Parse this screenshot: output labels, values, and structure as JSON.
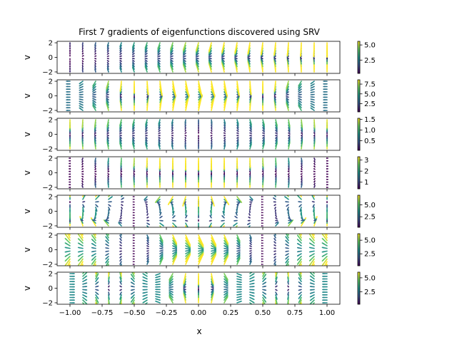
{
  "chart_data": {
    "type": "quiver",
    "title": "First 7 gradients of eigenfunctions discovered using SRV",
    "xlabel": "x",
    "ylabel": "v",
    "xlim": [
      -1.1,
      1.1
    ],
    "ylim": [
      -2.2,
      2.2
    ],
    "x_ticks": [
      -1.0,
      -0.75,
      -0.5,
      -0.25,
      0.0,
      0.25,
      0.5,
      0.75,
      1.0
    ],
    "x_tick_labels": [
      "−1.00",
      "−0.75",
      "−0.50",
      "−0.25",
      "0.00",
      "0.25",
      "0.50",
      "0.75",
      "1.00"
    ],
    "y_ticks": [
      -2,
      0,
      2
    ],
    "y_tick_labels": [
      "−2",
      "0",
      "2"
    ],
    "colormap": [
      "#440154",
      "#3b528b",
      "#21918c",
      "#5ec962",
      "#fde725"
    ],
    "grid_columns": 21,
    "grid_rows": 12,
    "panels": [
      {
        "colorbar_ticks": [
          2.5,
          5.0
        ],
        "colorbar_tick_labels": [
          "2.5",
          "5.0"
        ],
        "colorbar_range": [
          0.3,
          5.6
        ],
        "mode": 1
      },
      {
        "colorbar_ticks": [
          2.5,
          5.0,
          7.5
        ],
        "colorbar_tick_labels": [
          "2.5",
          "5.0",
          "7.5"
        ],
        "colorbar_range": [
          0.4,
          8.6
        ],
        "mode": 2
      },
      {
        "colorbar_ticks": [
          0.5,
          1.0,
          1.5
        ],
        "colorbar_tick_labels": [
          "0.5",
          "1.0",
          "1.5"
        ],
        "colorbar_range": [
          0.05,
          1.55
        ],
        "mode": 3
      },
      {
        "colorbar_ticks": [
          1,
          2,
          3
        ],
        "colorbar_tick_labels": [
          "1",
          "2",
          "3"
        ],
        "colorbar_range": [
          0.4,
          3.3
        ],
        "mode": 4
      },
      {
        "colorbar_ticks": [
          2.5,
          5.0
        ],
        "colorbar_tick_labels": [
          "2.5",
          "5.0"
        ],
        "colorbar_range": [
          0.3,
          7.0
        ],
        "mode": 5
      },
      {
        "colorbar_ticks": [
          2.5,
          5.0
        ],
        "colorbar_tick_labels": [
          "2.5",
          "5.0"
        ],
        "colorbar_range": [
          0.3,
          6.2
        ],
        "mode": 6
      },
      {
        "colorbar_ticks": [
          2.5,
          5.0
        ],
        "colorbar_tick_labels": [
          "2.5",
          "5.0"
        ],
        "colorbar_range": [
          0.3,
          6.0
        ],
        "mode": 7
      }
    ]
  }
}
